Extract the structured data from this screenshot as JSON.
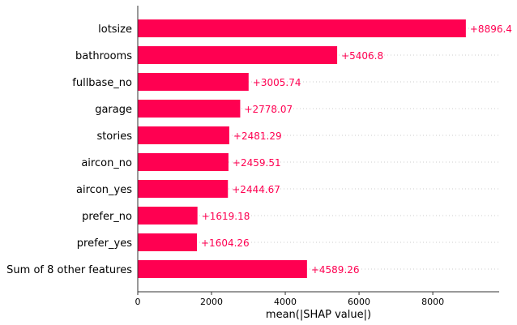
{
  "chart_data": {
    "type": "bar",
    "orientation": "horizontal",
    "categories": [
      "lotsize",
      "bathrooms",
      "fullbase_no",
      "garage",
      "stories",
      "aircon_no",
      "aircon_yes",
      "prefer_no",
      "prefer_yes",
      "Sum of 8 other features"
    ],
    "values": [
      8896.4,
      5406.8,
      3005.74,
      2778.07,
      2481.29,
      2459.51,
      2444.67,
      1619.18,
      1604.26,
      4589.26
    ],
    "value_labels": [
      "+8896.4",
      "+5406.8",
      "+3005.74",
      "+2778.07",
      "+2481.29",
      "+2459.51",
      "+2444.67",
      "+1619.18",
      "+1604.26",
      "+4589.26"
    ],
    "xlabel": "mean(|SHAP value|)",
    "ylabel": "",
    "xlim": [
      0,
      9800
    ],
    "xticks": [
      0,
      2000,
      4000,
      6000,
      8000
    ],
    "xtick_labels": [
      "0",
      "2000",
      "4000",
      "6000",
      "8000"
    ],
    "grid": "dotted horizontal row guides",
    "bar_color": "#ff0051",
    "axis_color": "#333333"
  }
}
